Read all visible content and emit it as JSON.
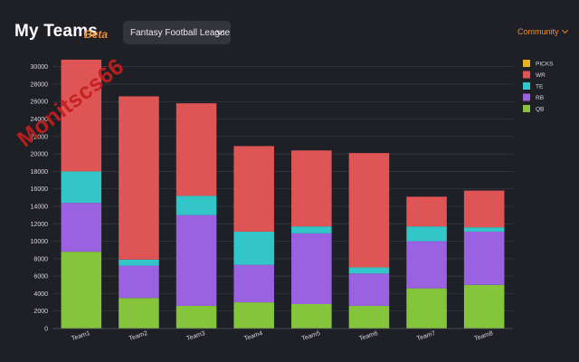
{
  "header": {
    "title": "My Teams",
    "badge": "Beta",
    "league_select": "Fantasy Football League",
    "community_label": "Community"
  },
  "watermark": "Monitscs66",
  "colors": {
    "background": "#1f2026",
    "accent": "#f08a2a",
    "QB": "#84c53c",
    "RB": "#9a62e0",
    "TE": "#33c6c8",
    "WR": "#df5454",
    "PICKS": "#e6b21f"
  },
  "chart_data": {
    "type": "bar",
    "stacked": true,
    "categories": [
      "Team1",
      "Team2",
      "Team3",
      "Team4",
      "Team5",
      "Team6",
      "Team7",
      "Team8"
    ],
    "series": [
      {
        "name": "QB",
        "color": "#84c53c",
        "values": [
          8800,
          3500,
          2600,
          3000,
          2800,
          2600,
          4600,
          5000
        ]
      },
      {
        "name": "RB",
        "color": "#9a62e0",
        "values": [
          5600,
          3700,
          10400,
          4300,
          8100,
          3700,
          5400,
          6100
        ]
      },
      {
        "name": "TE",
        "color": "#33c6c8",
        "values": [
          3600,
          700,
          2200,
          3800,
          800,
          700,
          1700,
          500
        ]
      },
      {
        "name": "WR",
        "color": "#df5454",
        "values": [
          12800,
          18700,
          10600,
          9800,
          8700,
          13100,
          3400,
          4200
        ]
      },
      {
        "name": "PICKS",
        "color": "#e6b21f",
        "values": [
          0,
          0,
          0,
          0,
          0,
          0,
          0,
          0
        ]
      }
    ],
    "legend": [
      "PICKS",
      "WR",
      "TE",
      "RB",
      "QB"
    ],
    "legend_position": "top-right",
    "yticks": [
      0,
      2000,
      4000,
      6000,
      8000,
      10000,
      12000,
      14000,
      16000,
      18000,
      20000,
      22000,
      24000,
      26000,
      28000,
      30000
    ],
    "ylim": [
      0,
      31000
    ],
    "grid": true
  }
}
